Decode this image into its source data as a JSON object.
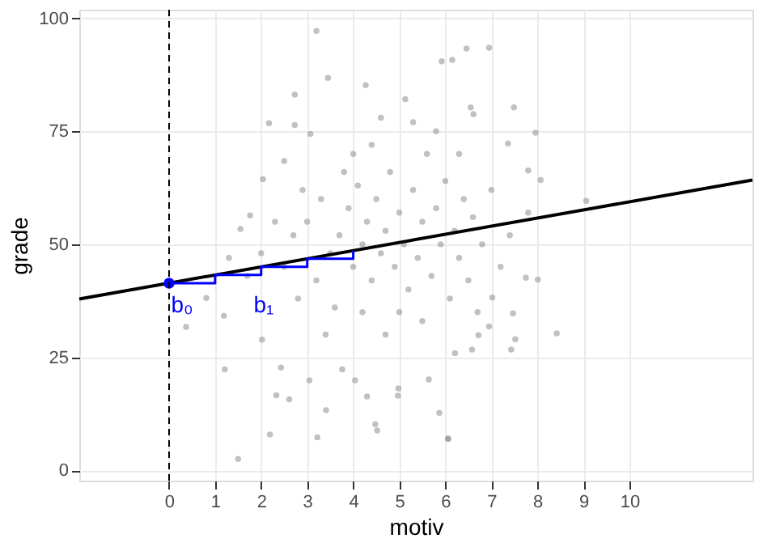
{
  "chart_data": {
    "type": "scatter",
    "xlabel": "motiv",
    "ylabel": "grade",
    "xlim": [
      -1.95,
      12.67
    ],
    "ylim": [
      -2.3,
      101.9
    ],
    "xticks": [
      0,
      1,
      2,
      3,
      4,
      5,
      6,
      7,
      8,
      9,
      10
    ],
    "yticks": [
      0,
      25,
      50,
      75,
      100
    ],
    "grid": true,
    "marker": "circle",
    "series": [
      {
        "color": "#8a8f8c",
        "x": [
          3.2,
          2.73,
          3.45,
          2.17,
          2.73,
          4.27,
          1.76,
          1.55,
          2.04,
          2.5,
          3.07,
          5.92,
          6.15,
          5.13,
          6.46,
          6.95,
          7.49,
          7.96,
          7.36,
          7.8,
          8.07,
          9.06,
          6.55,
          6.61,
          8.01,
          8.42,
          7.47,
          7.52,
          7.43,
          6.06,
          6.58,
          6.21,
          6.72,
          6.95,
          7.02,
          7.75,
          1.5,
          1.21,
          0.37,
          0.81,
          2.19,
          2.33,
          2.61,
          2.43,
          3.22,
          3.41,
          3.05,
          4.48,
          4.52,
          4.98,
          4.97,
          5.64,
          5.87,
          6.06,
          4.3,
          1.19,
          2.02,
          3.76,
          4.04,
          3.0,
          3.3,
          3.5,
          3.7,
          3.9,
          4.0,
          4.1,
          4.2,
          4.3,
          4.4,
          4.5,
          4.6,
          4.7,
          4.8,
          4.9,
          5.0,
          5.1,
          5.2,
          5.3,
          5.4,
          5.5,
          5.6,
          5.7,
          5.8,
          5.9,
          6.0,
          6.1,
          6.2,
          6.3,
          6.4,
          6.5,
          6.6,
          6.8,
          7.0,
          7.2,
          2.5,
          2.7,
          2.8,
          3.2,
          3.6,
          4.0,
          4.4,
          5.0,
          5.5,
          4.7,
          3.8,
          2.3,
          2.9,
          6.3,
          5.8,
          4.2,
          3.4,
          6.7,
          7.4,
          7.8,
          2.0,
          1.7,
          1.3,
          5.3,
          4.6
        ],
        "values": [
          97.2,
          83.1,
          86.8,
          76.8,
          76.4,
          85.2,
          56.4,
          53.4,
          64.4,
          68.4,
          74.4,
          90.5,
          90.8,
          82.1,
          93.3,
          93.5,
          80.3,
          74.7,
          72.3,
          66.3,
          64.2,
          59.6,
          80.3,
          78.8,
          42.2,
          30.3,
          34.7,
          29.0,
          26.7,
          7.0,
          26.7,
          25.9,
          29.9,
          31.8,
          38.2,
          42.6,
          2.5,
          22.3,
          31.7,
          38.1,
          7.9,
          16.6,
          15.7,
          22.7,
          7.3,
          13.3,
          19.9,
          10.2,
          8.8,
          18.1,
          16.5,
          20.1,
          12.7,
          6.9,
          16.3,
          34.2,
          28.9,
          22.3,
          19.9,
          55,
          60,
          48,
          52,
          58,
          45,
          63,
          50,
          55,
          42,
          60,
          48,
          53,
          66,
          45,
          57,
          50,
          40,
          62,
          47,
          55,
          70,
          43,
          58,
          50,
          64,
          38,
          53,
          47,
          60,
          42,
          56,
          50,
          62,
          45,
          45,
          52,
          38,
          42,
          36,
          70,
          72,
          35,
          33,
          30,
          66,
          55,
          62,
          70,
          75,
          35,
          30,
          35,
          52,
          57,
          48,
          43,
          47,
          77,
          78
        ]
      },
      {
        "type": "line",
        "marker": "none",
        "color": "#000000",
        "x": [
          -1.95,
          12.67
        ],
        "values": [
          37.9,
          64.2
        ]
      },
      {
        "type": "line",
        "marker": "none",
        "color": "#0000ff",
        "x": [
          0,
          1,
          1,
          2,
          2,
          3,
          3,
          4,
          4
        ],
        "values": [
          41.4,
          41.4,
          43.2,
          43.2,
          45.0,
          45.0,
          46.8,
          46.8,
          48.6
        ]
      },
      {
        "type": "scatter",
        "color": "#0000ff",
        "x": [
          0
        ],
        "values": [
          41.4
        ]
      }
    ],
    "ref_lines": [
      {
        "axis": "x",
        "value": 0,
        "color": "#000000",
        "line_style": "dashed"
      }
    ],
    "annotations": [
      "b₀",
      "b₁"
    ]
  }
}
